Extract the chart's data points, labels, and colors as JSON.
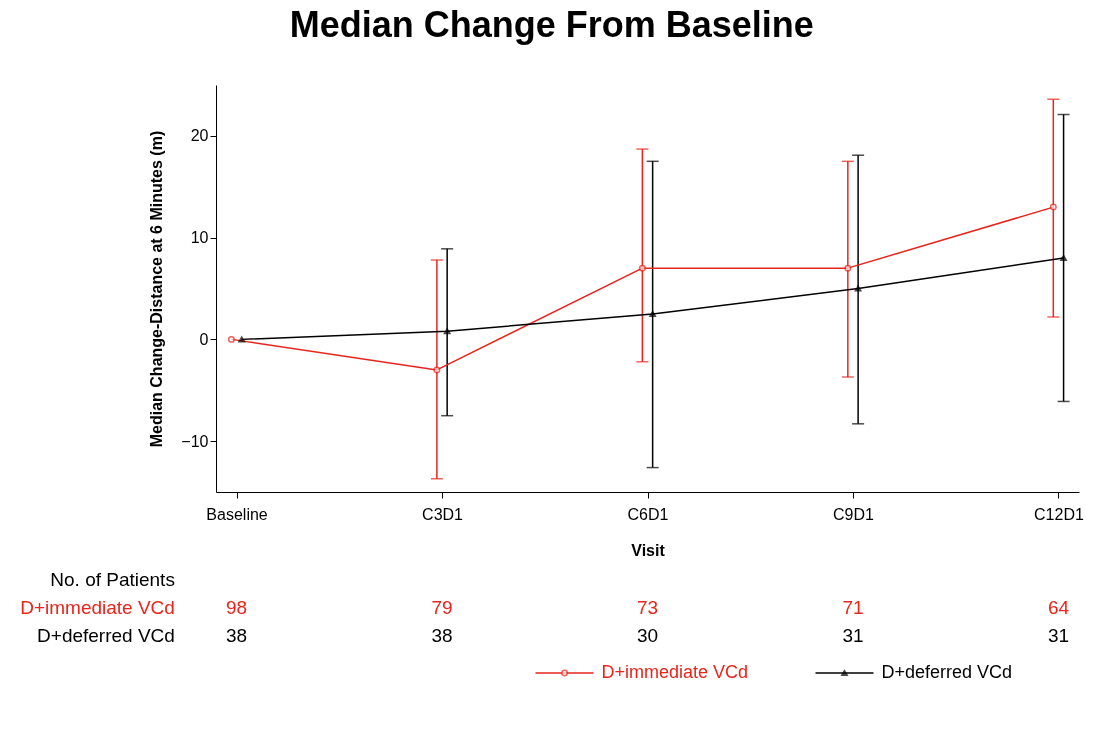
{
  "chart_data": {
    "type": "line",
    "title": "Median Change From Baseline",
    "xlabel": "Visit",
    "ylabel": "Median Change-Distance at 6 Minutes (m)",
    "categories": [
      "Baseline",
      "C3D1",
      "C6D1",
      "C9D1",
      "C12D1"
    ],
    "series": [
      {
        "name": "D+immediate VCd",
        "color": "#e8251c",
        "marker": "circle",
        "values": [
          0,
          -3,
          7,
          7,
          13
        ],
        "errors": [
          null,
          [
            -13.7,
            7.8
          ],
          [
            -2.2,
            18.7
          ],
          [
            -3.7,
            17.5
          ],
          [
            2.2,
            23.6
          ]
        ]
      },
      {
        "name": "D+deferred VCd",
        "color": "#000000",
        "marker": "triangle",
        "values": [
          0,
          0.8,
          2.5,
          5,
          8
        ],
        "errors": [
          null,
          [
            -7.5,
            8.9
          ],
          [
            -12.6,
            17.5
          ],
          [
            -8.3,
            18.1
          ],
          [
            -6.1,
            22.1
          ]
        ]
      }
    ],
    "ylim": [
      -15,
      25
    ],
    "yticks": [
      {
        "value": -10,
        "label": "−10"
      },
      0,
      10,
      20
    ],
    "grid": false,
    "legend": "bottom",
    "line_style": "solid",
    "annotations": [
      "No. of Patients",
      "98",
      "79",
      "73",
      "71",
      "64",
      "38",
      "38",
      "30",
      "31",
      "31"
    ]
  }
}
